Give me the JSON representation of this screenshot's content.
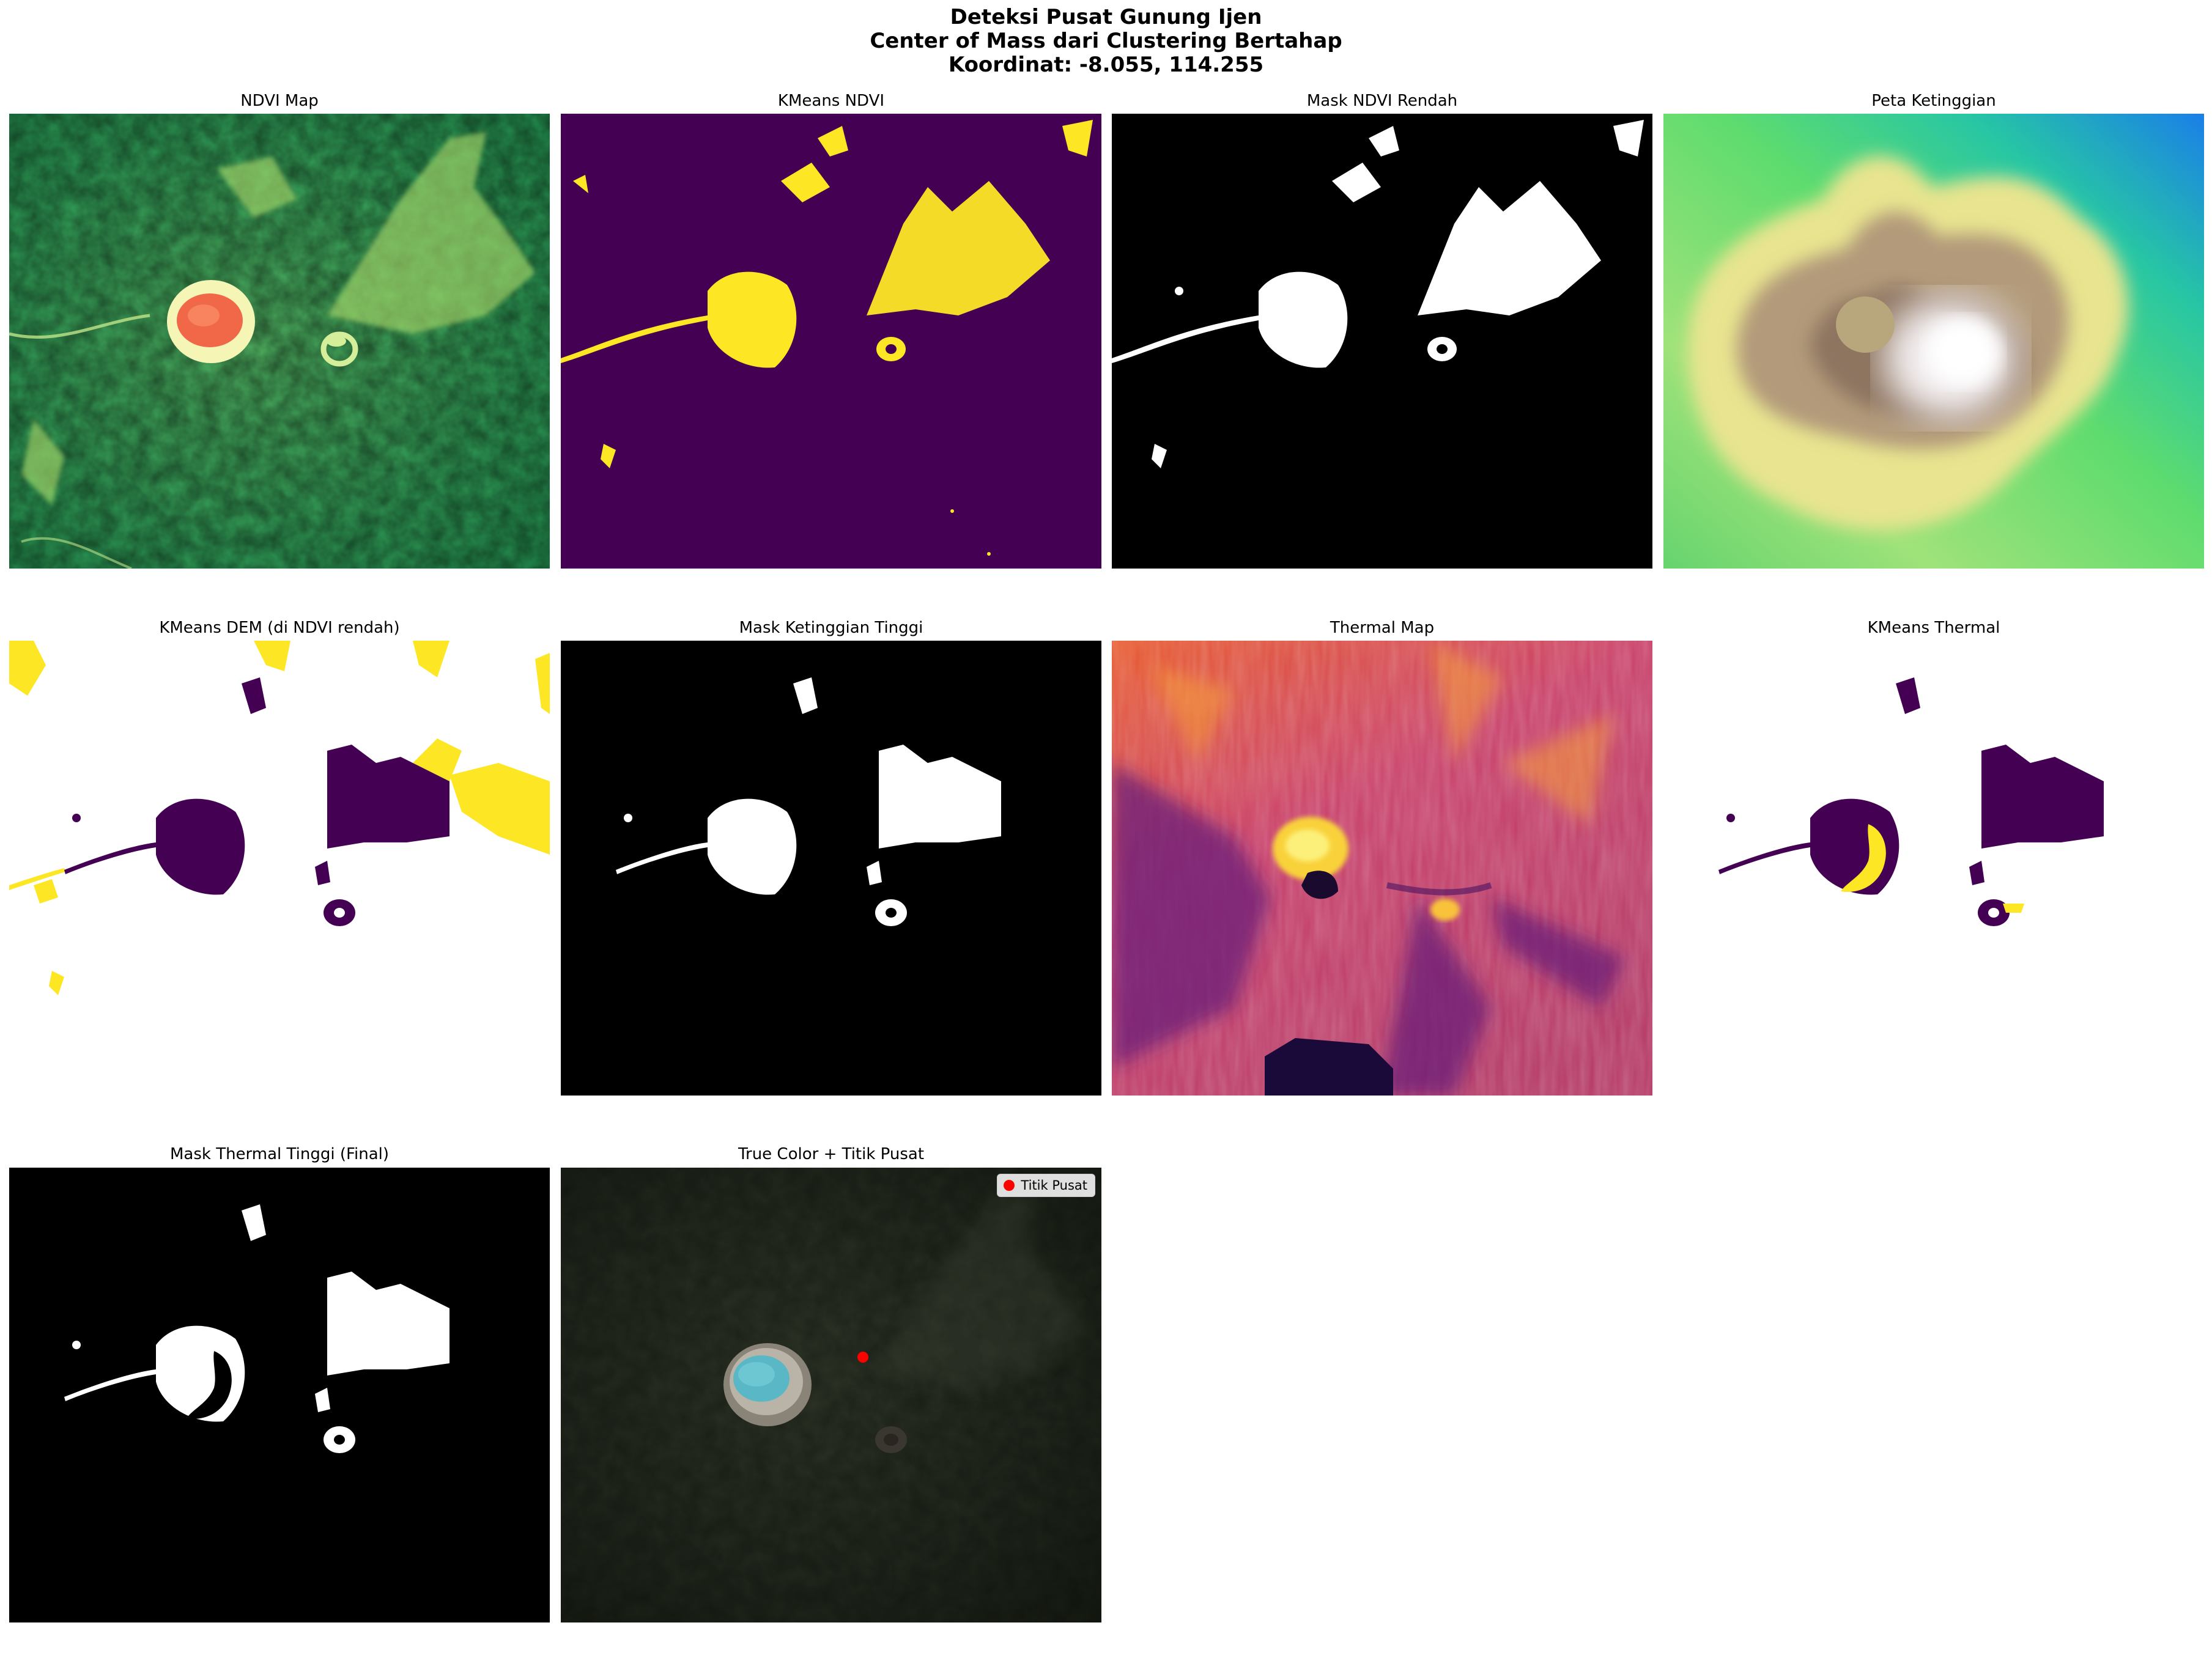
{
  "figure": {
    "title_lines": [
      "Deteksi Pusat Gunung Ijen",
      "Center of Mass dari Clustering Bertahap",
      "Koordinat: -8.055, 114.255"
    ]
  },
  "panels": [
    {
      "title": "NDVI Map",
      "colormap": "RdYlGn"
    },
    {
      "title": "KMeans NDVI",
      "colormap": "viridis",
      "colors": [
        "#440154",
        "#fde725"
      ]
    },
    {
      "title": "Mask NDVI Rendah",
      "colormap": "gray",
      "colors": [
        "#000000",
        "#ffffff"
      ]
    },
    {
      "title": "Peta Ketinggian",
      "colormap": "terrain"
    },
    {
      "title": "KMeans DEM (di NDVI rendah)",
      "colormap": "viridis",
      "colors": [
        "#ffffff",
        "#440154",
        "#fde725"
      ]
    },
    {
      "title": "Mask Ketinggian Tinggi",
      "colormap": "gray",
      "colors": [
        "#000000",
        "#ffffff"
      ]
    },
    {
      "title": "Thermal Map",
      "colormap": "inferno"
    },
    {
      "title": "KMeans Thermal",
      "colormap": "viridis",
      "colors": [
        "#ffffff",
        "#440154",
        "#fde725"
      ]
    },
    {
      "title": "Mask Thermal Tinggi (Final)",
      "colormap": "gray",
      "colors": [
        "#000000",
        "#ffffff"
      ]
    },
    {
      "title": "True Color + Titik Pusat",
      "colormap": "rgb",
      "legend": {
        "label": "Titik Pusat",
        "marker_color": "#ff0000"
      }
    }
  ]
}
